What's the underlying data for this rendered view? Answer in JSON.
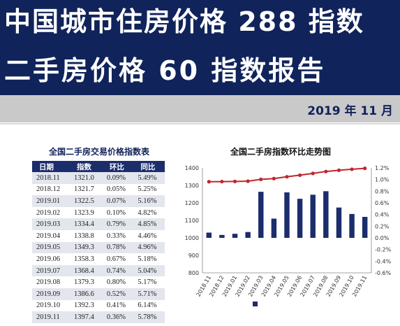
{
  "header": {
    "title_line1": "中国城市住房价格 288 指数",
    "title_line2": "二手房价格 60 指数报告",
    "date": "2019 年 11 月"
  },
  "table": {
    "title": "全国二手房交易价格指数表",
    "columns": [
      "日期",
      "指数",
      "环比",
      "同比"
    ],
    "rows": [
      [
        "2018.11",
        "1321.0",
        "0.09%",
        "5.49%"
      ],
      [
        "2018.12",
        "1321.7",
        "0.05%",
        "5.25%"
      ],
      [
        "2019.01",
        "1322.5",
        "0.07%",
        "5.16%"
      ],
      [
        "2019.02",
        "1323.9",
        "0.10%",
        "4.82%"
      ],
      [
        "2019.03",
        "1334.4",
        "0.79%",
        "4.85%"
      ],
      [
        "2019.04",
        "1338.8",
        "0.33%",
        "4.46%"
      ],
      [
        "2019.05",
        "1349.3",
        "0.78%",
        "4.96%"
      ],
      [
        "2019.06",
        "1358.3",
        "0.67%",
        "5.18%"
      ],
      [
        "2019.07",
        "1368.4",
        "0.74%",
        "5.04%"
      ],
      [
        "2019.08",
        "1379.3",
        "0.80%",
        "5.17%"
      ],
      [
        "2019.09",
        "1386.6",
        "0.52%",
        "5.71%"
      ],
      [
        "2019.10",
        "1392.3",
        "0.41%",
        "6.14%"
      ],
      [
        "2019.11",
        "1397.4",
        "0.36%",
        "5.78%"
      ]
    ]
  },
  "colors": {
    "banner": "#10235a",
    "bar": "#1b2d6b",
    "line": "#c0272d",
    "table_header": "#1b2d6b"
  },
  "chart_data": {
    "type": "bar",
    "title": "全国二手房指数环比走势图",
    "categories": [
      "2018.11",
      "2018.12",
      "2019.01",
      "2019.02",
      "2019.03",
      "2019.04",
      "2019.05",
      "2019.06",
      "2019.07",
      "2019.08",
      "2019.09",
      "2019.10",
      "2019.11"
    ],
    "series": [
      {
        "type": "bar",
        "axis": "right",
        "values": [
          0.09,
          0.05,
          0.07,
          0.1,
          0.79,
          0.33,
          0.78,
          0.67,
          0.74,
          0.8,
          0.52,
          0.41,
          0.36
        ]
      },
      {
        "type": "line",
        "axis": "left",
        "values": [
          1321.0,
          1321.7,
          1322.5,
          1323.9,
          1334.4,
          1338.8,
          1349.3,
          1358.3,
          1368.4,
          1379.3,
          1386.6,
          1392.3,
          1397.4
        ]
      }
    ],
    "left_axis": {
      "ylim": [
        800,
        1400
      ],
      "ticks": [
        "800",
        "900",
        "1000",
        "1100",
        "1200",
        "1300",
        "1400"
      ]
    },
    "right_axis": {
      "ylim": [
        -0.6,
        1.2
      ],
      "ticks": [
        "-0.6%",
        "-0.4%",
        "-0.2%",
        "0.0%",
        "0.2%",
        "0.4%",
        "0.6%",
        "0.8%",
        "1.0%",
        "1.2%"
      ]
    },
    "legend": {
      "placement": "bottom"
    },
    "grid": false
  }
}
